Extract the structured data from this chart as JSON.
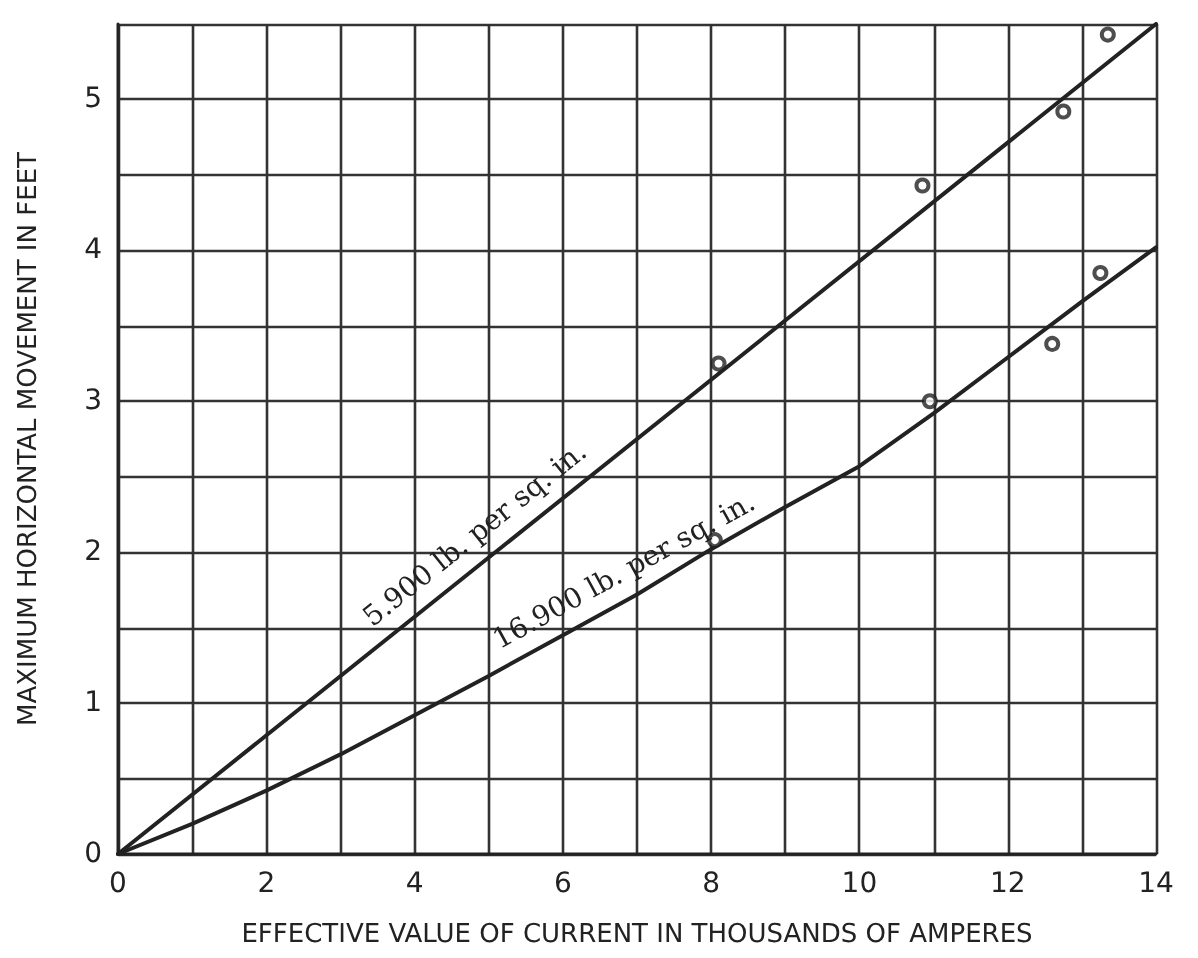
{
  "chart_data": {
    "type": "line",
    "xlabel": "EFFECTIVE VALUE OF CURRENT IN THOUSANDS OF AMPERES",
    "ylabel": "MAXIMUM HORIZONTAL MOVEMENT IN FEET",
    "xlim": [
      0,
      14
    ],
    "ylim": [
      0,
      5.5
    ],
    "xticks": [
      0,
      {
        "value": 1,
        "label": null
      },
      2,
      {
        "value": 3,
        "label": null
      },
      4,
      {
        "value": 5,
        "label": null
      },
      6,
      {
        "value": 7,
        "label": null
      },
      8,
      {
        "value": 9,
        "label": null
      },
      10,
      {
        "value": 11,
        "label": null
      },
      12,
      {
        "value": 13,
        "label": null
      },
      14
    ],
    "yticks": [
      0,
      {
        "value": 0.5,
        "label": null
      },
      1,
      {
        "value": 1.5,
        "label": null
      },
      2,
      {
        "value": 2.5,
        "label": null
      },
      3,
      {
        "value": 3.5,
        "label": null
      },
      4,
      {
        "value": 4.5,
        "label": null
      },
      5,
      {
        "value": 5.5,
        "label": null
      }
    ],
    "grid": true,
    "series": [
      {
        "marker": "none",
        "line_style": "solid",
        "color": "#222222",
        "x": [
          0,
          14
        ],
        "values": [
          0,
          5.5
        ]
      },
      {
        "marker": "none",
        "line_style": "solid",
        "color": "#222222",
        "x": [
          0,
          1,
          2,
          3,
          4,
          5,
          6,
          7,
          8,
          9,
          10,
          11,
          12,
          13,
          14
        ],
        "values": [
          0,
          0.2,
          0.42,
          0.66,
          0.92,
          1.18,
          1.45,
          1.72,
          2.02,
          2.3,
          2.57,
          2.92,
          3.29,
          3.66,
          4.02
        ]
      },
      {
        "type": "scatter",
        "marker": "circle",
        "color": "#222222",
        "x": [
          8.1,
          10.85,
          12.75,
          13.35
        ],
        "values": [
          3.25,
          4.43,
          4.92,
          5.43
        ]
      },
      {
        "type": "scatter",
        "marker": "circle",
        "color": "#222222",
        "x": [
          8.05,
          10.95,
          12.6,
          13.25
        ],
        "values": [
          2.08,
          3.0,
          3.38,
          3.85
        ]
      }
    ],
    "annotations": [
      "5.900 lb. per sq. in.",
      "16.900 lb. per sq. in."
    ]
  }
}
